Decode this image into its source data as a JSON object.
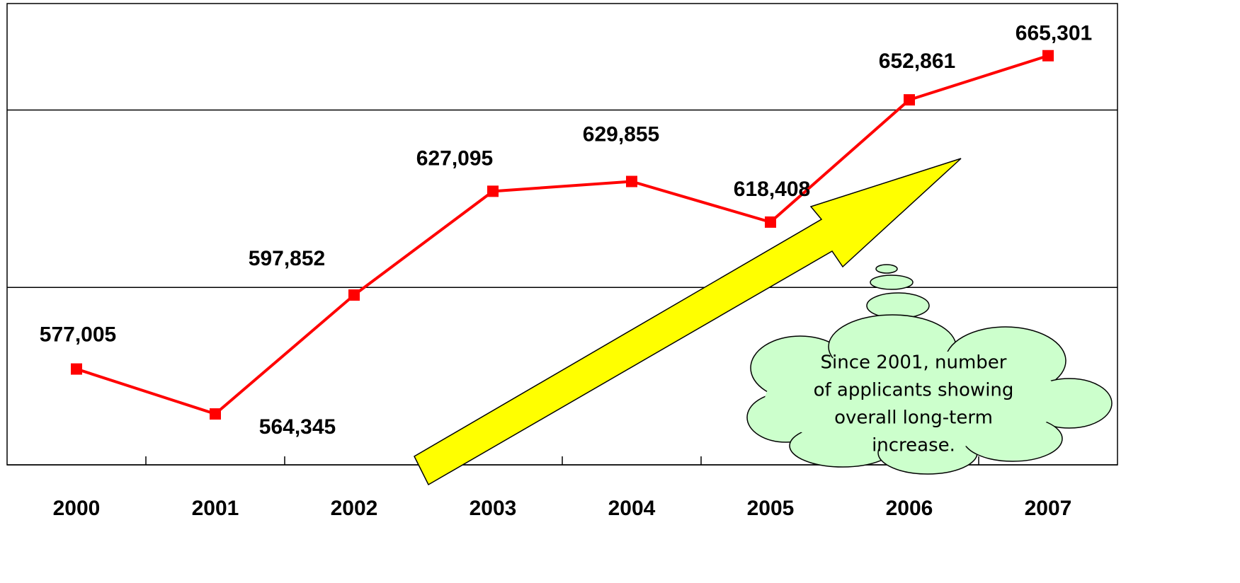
{
  "chart_data": {
    "type": "line",
    "categories": [
      "2000",
      "2001",
      "2002",
      "2003",
      "2004",
      "2005",
      "2006",
      "2007"
    ],
    "series": [
      {
        "color": "#ff0000",
        "values": [
          577005,
          564345,
          597852,
          627095,
          629855,
          618408,
          652861,
          665301
        ],
        "value_labels": [
          "577,005",
          "564,345",
          "597,852",
          "627,095",
          "629,855",
          "618,408",
          "652,861",
          "665,301"
        ]
      }
    ],
    "ylim": [
      550000,
      680000
    ],
    "yticks": [
      550000,
      600000,
      650000
    ],
    "grid": true,
    "callout": {
      "lines": [
        "Since 2001, number",
        "of applicants showing",
        "overall long-term",
        "increase."
      ]
    }
  }
}
